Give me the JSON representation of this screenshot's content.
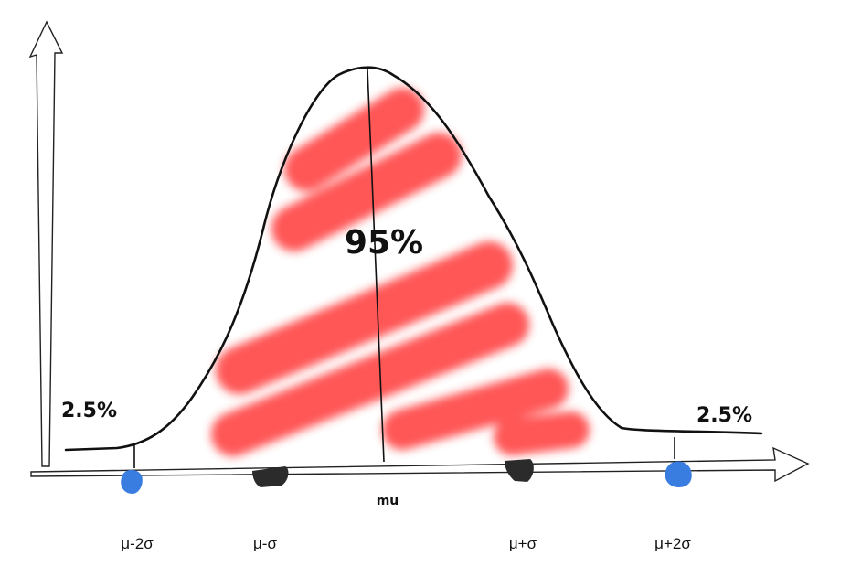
{
  "diagram": {
    "center_label": "95%",
    "left_tail_label": "2.5%",
    "right_tail_label": "2.5%",
    "mean_label": "mu",
    "ticks": [
      "μ-2σ",
      "μ-σ",
      "μ+σ",
      "μ+2σ"
    ]
  },
  "colors": {
    "ink": "#111111",
    "highlight": "#ff4d4d",
    "sigma2_marker": "#3a7de0",
    "sigma1_marker": "#2b2b2b"
  }
}
